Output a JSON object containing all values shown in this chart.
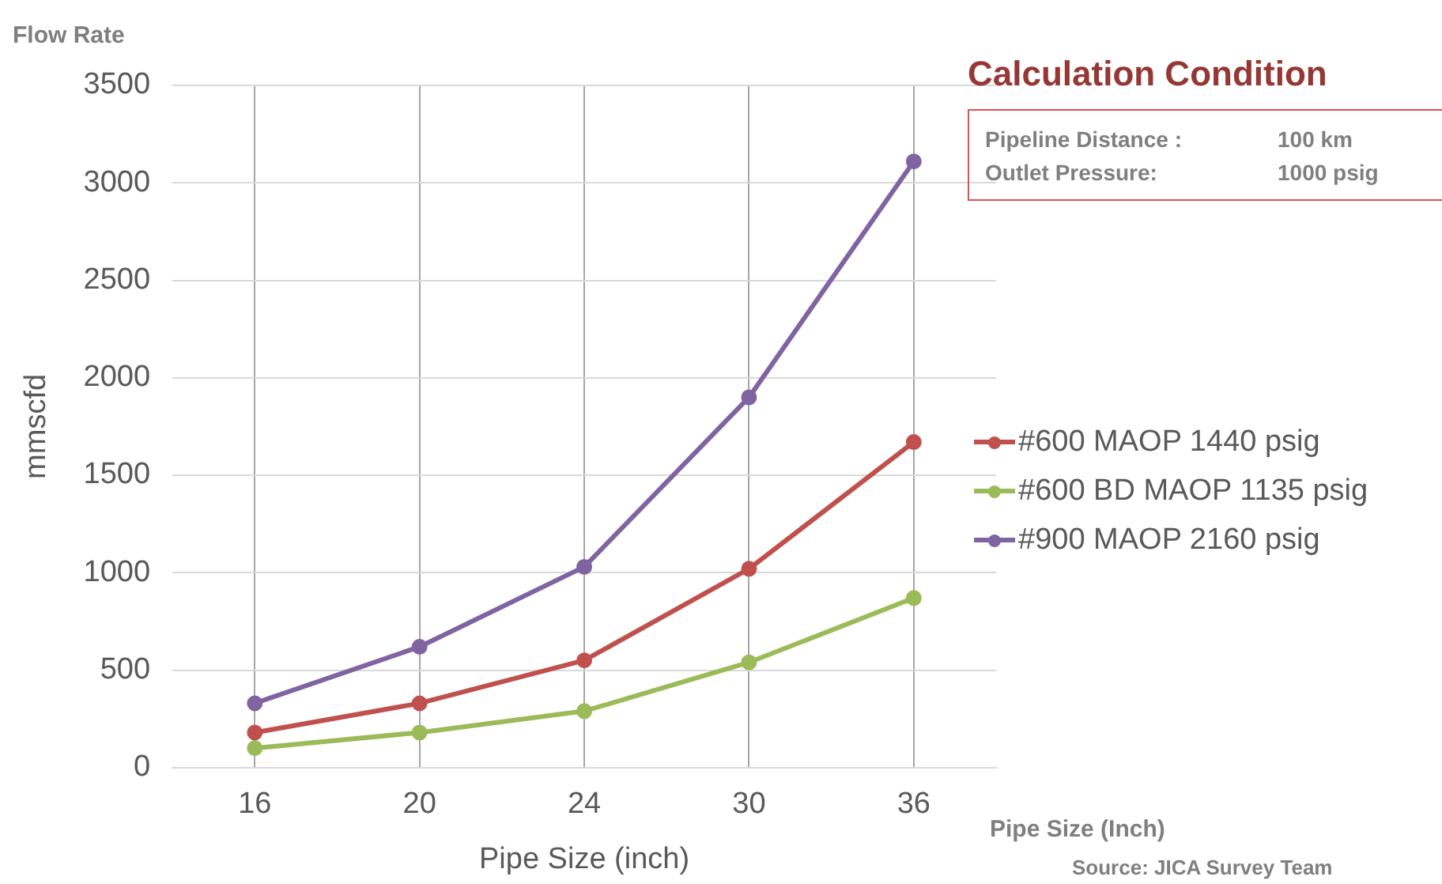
{
  "chart_data": {
    "type": "line",
    "title": "Calculation Condition",
    "xlabel": "Pipe Size (inch)",
    "ylabel": "mmscfd",
    "categories": [
      "16",
      "20",
      "24",
      "30",
      "36"
    ],
    "series": [
      {
        "name": "#600 MAOP 1440 psig",
        "color": "#c0504d",
        "values": [
          180,
          330,
          550,
          1020,
          1670
        ]
      },
      {
        "name": "#600 BD MAOP 1135 psig",
        "color": "#9bbb59",
        "values": [
          100,
          180,
          290,
          540,
          870
        ]
      },
      {
        "name": "#900 MAOP 2160 psig",
        "color": "#8064a2",
        "values": [
          330,
          620,
          1030,
          1900,
          3110
        ]
      }
    ],
    "ylim": [
      0,
      3500
    ],
    "yticks": [
      0,
      500,
      1000,
      1500,
      2000,
      2500,
      3000,
      3500
    ],
    "grid": true,
    "legend": "right",
    "marker": "circle",
    "line_style": "solid",
    "annotations": [
      "Flow Rate",
      "Pipeline Distance :",
      "100 km",
      "Outlet Pressure:",
      "1000 psig",
      "Pipe Size  (Inch)",
      "Source:  JICA Survey Team"
    ]
  }
}
